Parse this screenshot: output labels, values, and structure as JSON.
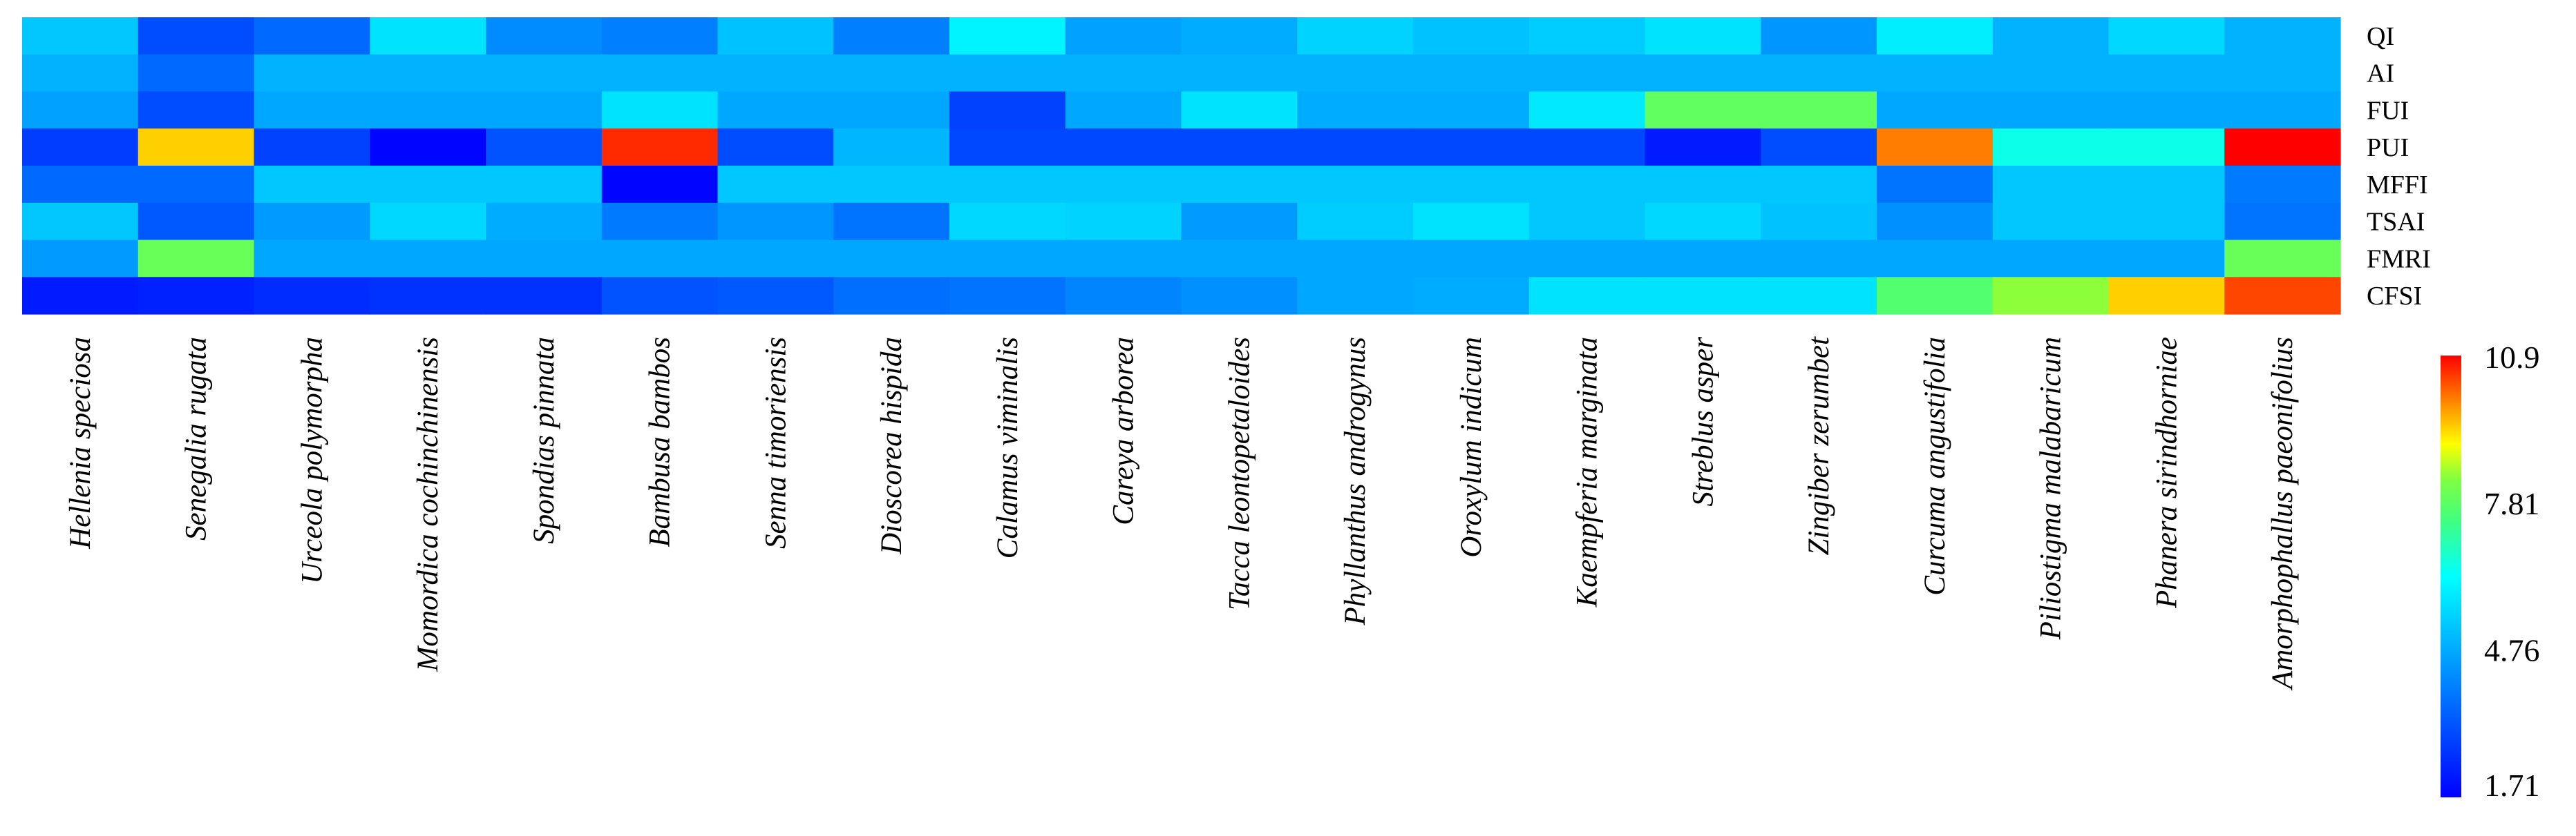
{
  "chart_data": {
    "type": "heatmap",
    "title": "",
    "xlabel": "",
    "ylabel": "",
    "columns": [
      "Hellenia speciosa",
      "Senegalia rugata",
      "Urceola polymorpha",
      "Momordica cochinchinensis",
      "Spondias pinnata",
      "Bambusa bambos",
      "Senna timoriensis",
      "Dioscorea hispida",
      "Calamus viminalis",
      "Careya arborea",
      "Tacca leontopetaloides",
      "Phyllanthus androgynus",
      "Oroxylum indicum",
      "Kaempferia marginata",
      "Streblus asper",
      "Zingiber zerumbet",
      "Curcuma angustifolia",
      "Piliostigma malabaricum",
      "Phanera sirindhorniae",
      "Amorphophallus paeonifolius"
    ],
    "rows": [
      "QI",
      "AI",
      "FUI",
      "PUI",
      "MFFI",
      "TSAI",
      "FMRI",
      "CFSI"
    ],
    "values": [
      [
        5.3,
        3.1,
        3.6,
        5.8,
        4.2,
        4.0,
        5.2,
        4.0,
        6.1,
        4.6,
        4.8,
        5.5,
        5.2,
        5.4,
        5.8,
        4.4,
        6.0,
        4.9,
        5.6,
        4.9
      ],
      [
        4.9,
        3.6,
        4.9,
        4.9,
        4.9,
        4.9,
        4.9,
        4.9,
        4.9,
        4.9,
        4.9,
        4.9,
        4.9,
        4.9,
        4.9,
        4.9,
        4.9,
        4.9,
        4.9,
        4.9
      ],
      [
        4.6,
        3.1,
        4.7,
        4.7,
        4.7,
        5.8,
        4.7,
        4.7,
        2.9,
        4.7,
        5.8,
        4.8,
        4.8,
        5.9,
        7.9,
        7.9,
        4.7,
        4.7,
        4.7,
        4.7
      ],
      [
        2.8,
        9.4,
        2.9,
        1.8,
        3.2,
        10.6,
        3.1,
        5.0,
        3.0,
        3.0,
        3.0,
        3.0,
        3.0,
        3.0,
        2.2,
        3.1,
        10.0,
        6.5,
        6.5,
        10.9
      ],
      [
        3.6,
        3.6,
        5.3,
        5.3,
        5.3,
        1.8,
        5.3,
        5.3,
        5.3,
        5.3,
        5.3,
        5.3,
        5.3,
        5.3,
        5.3,
        5.3,
        3.8,
        5.3,
        5.3,
        3.9
      ],
      [
        5.3,
        3.3,
        4.5,
        5.6,
        4.8,
        3.9,
        4.4,
        3.8,
        5.6,
        5.5,
        4.5,
        5.4,
        5.8,
        5.3,
        5.6,
        5.2,
        4.3,
        5.3,
        5.3,
        3.8
      ],
      [
        4.5,
        8.0,
        4.7,
        4.7,
        4.7,
        4.7,
        4.7,
        4.7,
        4.7,
        4.7,
        4.7,
        4.7,
        4.7,
        4.7,
        4.7,
        4.7,
        4.7,
        4.7,
        4.7,
        8.0
      ],
      [
        2.2,
        2.3,
        2.5,
        2.6,
        2.6,
        3.2,
        3.3,
        3.7,
        3.8,
        4.1,
        4.3,
        4.7,
        4.8,
        5.8,
        5.8,
        5.8,
        7.7,
        8.4,
        9.4,
        10.4
      ]
    ],
    "colorbar": {
      "min": 1.71,
      "max": 10.9,
      "ticks": [
        "10.9",
        "7.81",
        "4.76",
        "1.71"
      ],
      "colormap": "jet"
    },
    "grid": false
  }
}
